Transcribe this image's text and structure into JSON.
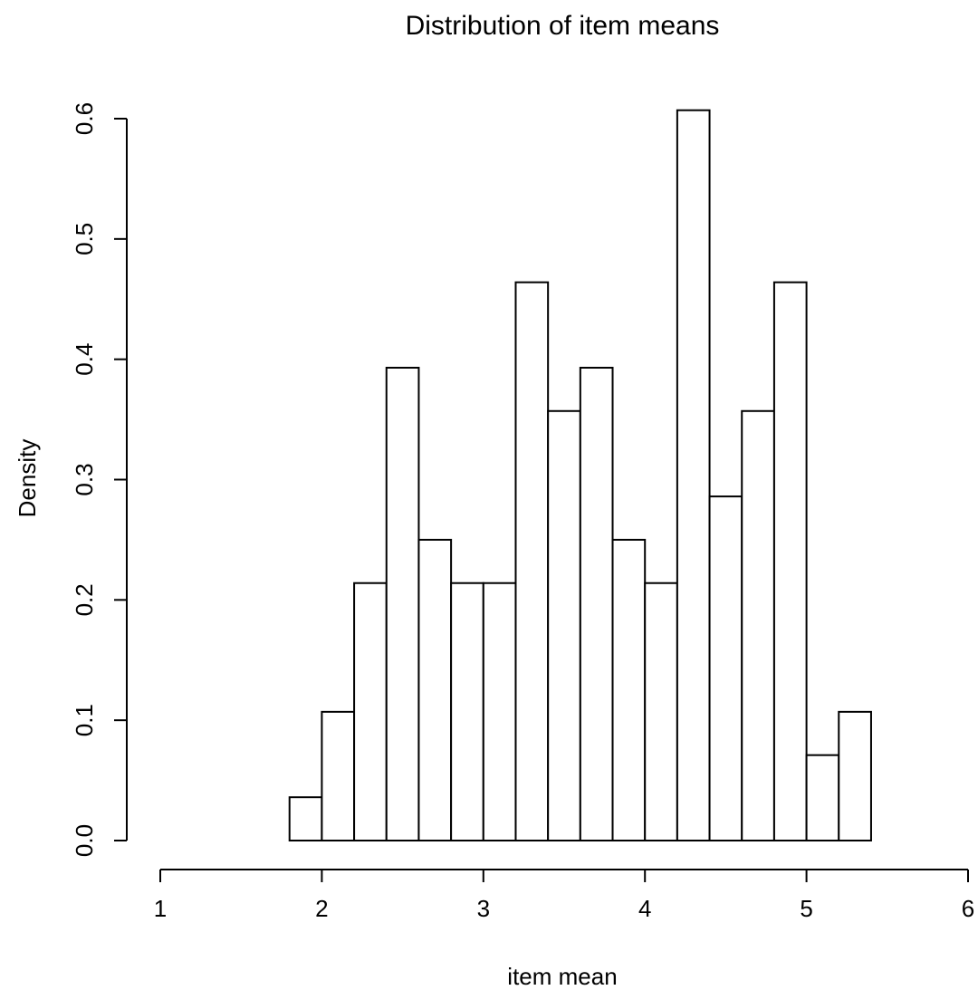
{
  "chart_data": {
    "type": "histogram",
    "title": "Distribution of item means",
    "xlabel": "item mean",
    "ylabel": "Density",
    "xlim": [
      1,
      6
    ],
    "ylim": [
      0,
      0.6
    ],
    "x_ticks": [
      "1",
      "2",
      "3",
      "4",
      "5",
      "6"
    ],
    "y_ticks": [
      "0.0",
      "0.1",
      "0.2",
      "0.3",
      "0.4",
      "0.5",
      "0.6"
    ],
    "grid": false,
    "legend": "none",
    "bins": [
      {
        "x0": 1.8,
        "x1": 2.0,
        "density": 0.036
      },
      {
        "x0": 2.0,
        "x1": 2.2,
        "density": 0.107
      },
      {
        "x0": 2.2,
        "x1": 2.4,
        "density": 0.214
      },
      {
        "x0": 2.4,
        "x1": 2.6,
        "density": 0.393
      },
      {
        "x0": 2.6,
        "x1": 2.8,
        "density": 0.25
      },
      {
        "x0": 2.8,
        "x1": 3.0,
        "density": 0.214
      },
      {
        "x0": 3.0,
        "x1": 3.2,
        "density": 0.214
      },
      {
        "x0": 3.2,
        "x1": 3.4,
        "density": 0.464
      },
      {
        "x0": 3.4,
        "x1": 3.6,
        "density": 0.357
      },
      {
        "x0": 3.6,
        "x1": 3.8,
        "density": 0.393
      },
      {
        "x0": 3.8,
        "x1": 4.0,
        "density": 0.25
      },
      {
        "x0": 4.0,
        "x1": 4.2,
        "density": 0.214
      },
      {
        "x0": 4.2,
        "x1": 4.4,
        "density": 0.607
      },
      {
        "x0": 4.4,
        "x1": 4.6,
        "density": 0.286
      },
      {
        "x0": 4.6,
        "x1": 4.8,
        "density": 0.357
      },
      {
        "x0": 4.8,
        "x1": 5.0,
        "density": 0.464
      },
      {
        "x0": 5.0,
        "x1": 5.2,
        "density": 0.071
      },
      {
        "x0": 5.2,
        "x1": 5.4,
        "density": 0.107
      }
    ]
  }
}
